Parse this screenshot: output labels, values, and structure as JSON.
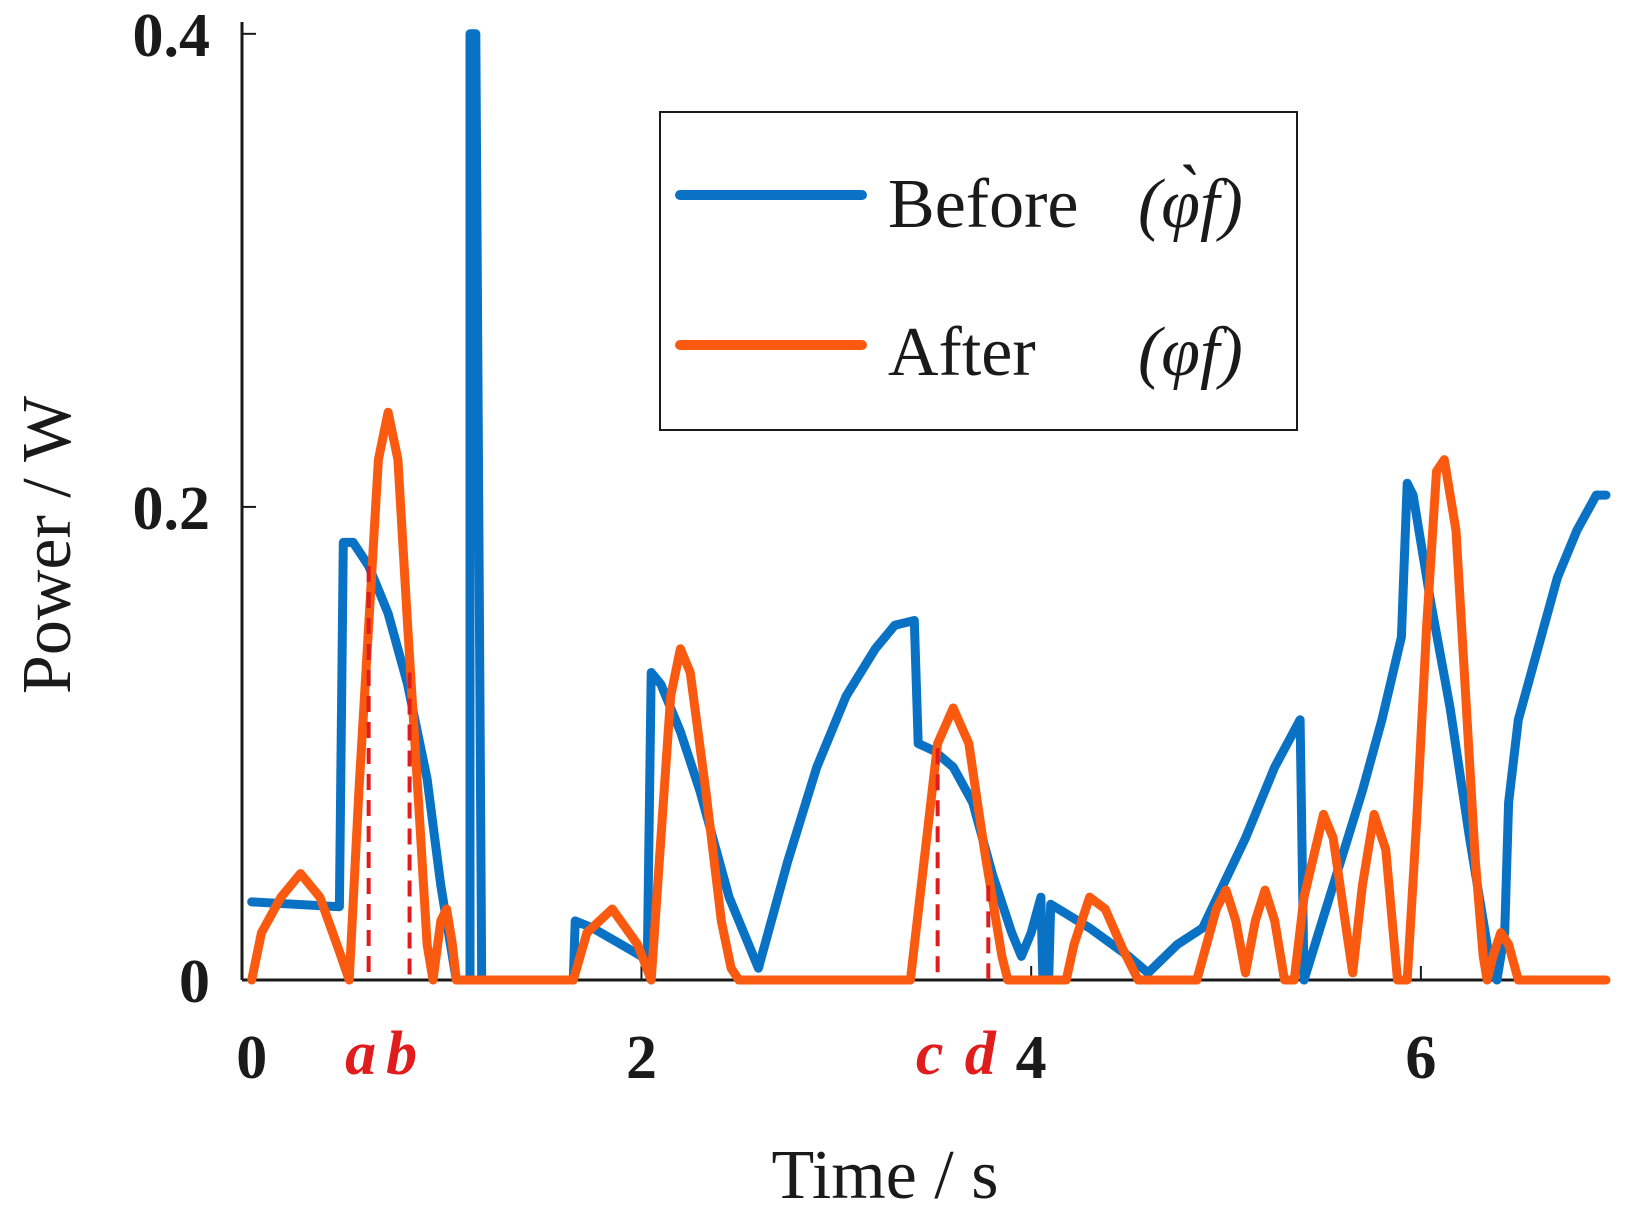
{
  "chart_data": {
    "type": "line",
    "title": "",
    "xlabel": "Time / s",
    "ylabel": "Power / W",
    "xlim": [
      -0.05,
      6.95
    ],
    "ylim": [
      0,
      0.405
    ],
    "x_ticks": [
      {
        "value": 0,
        "label": "0"
      },
      {
        "value": 2,
        "label": "2"
      },
      {
        "value": 4,
        "label": "4"
      },
      {
        "value": 6,
        "label": "6"
      }
    ],
    "y_ticks": [
      {
        "value": 0,
        "label": "0"
      },
      {
        "value": 0.2,
        "label": "0.2"
      },
      {
        "value": 0.4,
        "label": "0.4"
      }
    ],
    "legend": {
      "position": "top-right",
      "entries": [
        {
          "series": "before",
          "label": "Before",
          "symbol": "(φ̀f)"
        },
        {
          "series": "after",
          "label": "After",
          "symbol": "(φf)"
        }
      ]
    },
    "colors": {
      "before": "#0a72c4",
      "after": "#fa5a0f",
      "marker": "#e01c1c",
      "axis": "#1a1a1a"
    },
    "series": [
      {
        "name": "before",
        "points": [
          [
            0.0,
            0.033
          ],
          [
            0.45,
            0.031
          ],
          [
            0.47,
            0.185
          ],
          [
            0.52,
            0.185
          ],
          [
            0.6,
            0.175
          ],
          [
            0.7,
            0.155
          ],
          [
            0.8,
            0.125
          ],
          [
            0.9,
            0.085
          ],
          [
            0.97,
            0.04
          ],
          [
            1.01,
            0.02
          ],
          [
            1.05,
            0.0
          ],
          [
            1.12,
            0.0
          ],
          [
            1.12,
            0.4
          ],
          [
            1.15,
            0.4
          ],
          [
            1.18,
            0.0
          ],
          [
            1.65,
            0.0
          ],
          [
            1.66,
            0.025
          ],
          [
            1.75,
            0.022
          ],
          [
            2.0,
            0.01
          ],
          [
            2.03,
            0.008
          ],
          [
            2.05,
            0.13
          ],
          [
            2.1,
            0.125
          ],
          [
            2.2,
            0.105
          ],
          [
            2.3,
            0.08
          ],
          [
            2.45,
            0.035
          ],
          [
            2.6,
            0.005
          ],
          [
            2.75,
            0.05
          ],
          [
            2.9,
            0.09
          ],
          [
            3.05,
            0.12
          ],
          [
            3.2,
            0.14
          ],
          [
            3.3,
            0.15
          ],
          [
            3.4,
            0.152
          ],
          [
            3.42,
            0.1
          ],
          [
            3.5,
            0.097
          ],
          [
            3.6,
            0.09
          ],
          [
            3.7,
            0.075
          ],
          [
            3.8,
            0.045
          ],
          [
            3.9,
            0.02
          ],
          [
            3.95,
            0.01
          ],
          [
            4.0,
            0.02
          ],
          [
            4.05,
            0.035
          ],
          [
            4.06,
            0.0
          ],
          [
            4.09,
            0.0
          ],
          [
            4.1,
            0.032
          ],
          [
            4.3,
            0.022
          ],
          [
            4.5,
            0.01
          ],
          [
            4.6,
            0.003
          ],
          [
            4.75,
            0.015
          ],
          [
            4.88,
            0.022
          ],
          [
            5.1,
            0.06
          ],
          [
            5.25,
            0.09
          ],
          [
            5.38,
            0.11
          ],
          [
            5.4,
            0.0
          ],
          [
            5.55,
            0.04
          ],
          [
            5.7,
            0.08
          ],
          [
            5.8,
            0.11
          ],
          [
            5.9,
            0.145
          ],
          [
            5.93,
            0.21
          ],
          [
            5.96,
            0.205
          ],
          [
            6.05,
            0.16
          ],
          [
            6.15,
            0.115
          ],
          [
            6.25,
            0.06
          ],
          [
            6.35,
            0.01
          ],
          [
            6.39,
            0.0
          ],
          [
            6.43,
            0.02
          ],
          [
            6.45,
            0.075
          ],
          [
            6.5,
            0.11
          ],
          [
            6.6,
            0.14
          ],
          [
            6.7,
            0.17
          ],
          [
            6.8,
            0.19
          ],
          [
            6.9,
            0.205
          ],
          [
            6.95,
            0.205
          ]
        ]
      },
      {
        "name": "after",
        "points": [
          [
            0.0,
            0.0
          ],
          [
            0.05,
            0.02
          ],
          [
            0.15,
            0.035
          ],
          [
            0.25,
            0.045
          ],
          [
            0.35,
            0.035
          ],
          [
            0.45,
            0.012
          ],
          [
            0.5,
            0.0
          ],
          [
            0.55,
            0.08
          ],
          [
            0.6,
            0.15
          ],
          [
            0.65,
            0.22
          ],
          [
            0.7,
            0.24
          ],
          [
            0.75,
            0.22
          ],
          [
            0.8,
            0.15
          ],
          [
            0.86,
            0.07
          ],
          [
            0.9,
            0.015
          ],
          [
            0.93,
            0.0
          ],
          [
            0.97,
            0.025
          ],
          [
            1.0,
            0.03
          ],
          [
            1.03,
            0.015
          ],
          [
            1.05,
            0.0
          ],
          [
            1.65,
            0.0
          ],
          [
            1.72,
            0.02
          ],
          [
            1.85,
            0.03
          ],
          [
            1.98,
            0.015
          ],
          [
            2.05,
            0.0
          ],
          [
            2.1,
            0.06
          ],
          [
            2.15,
            0.12
          ],
          [
            2.2,
            0.14
          ],
          [
            2.25,
            0.13
          ],
          [
            2.33,
            0.08
          ],
          [
            2.41,
            0.025
          ],
          [
            2.46,
            0.005
          ],
          [
            2.5,
            0.0
          ],
          [
            3.38,
            0.0
          ],
          [
            3.45,
            0.05
          ],
          [
            3.52,
            0.1
          ],
          [
            3.6,
            0.115
          ],
          [
            3.68,
            0.1
          ],
          [
            3.76,
            0.055
          ],
          [
            3.85,
            0.01
          ],
          [
            3.88,
            0.0
          ],
          [
            4.18,
            0.0
          ],
          [
            4.22,
            0.015
          ],
          [
            4.3,
            0.035
          ],
          [
            4.38,
            0.03
          ],
          [
            4.47,
            0.013
          ],
          [
            4.55,
            0.0
          ],
          [
            4.85,
            0.0
          ],
          [
            4.95,
            0.03
          ],
          [
            5.0,
            0.038
          ],
          [
            5.05,
            0.025
          ],
          [
            5.1,
            0.003
          ],
          [
            5.15,
            0.025
          ],
          [
            5.2,
            0.038
          ],
          [
            5.25,
            0.025
          ],
          [
            5.3,
            0.0
          ],
          [
            5.35,
            0.0
          ],
          [
            5.4,
            0.035
          ],
          [
            5.5,
            0.07
          ],
          [
            5.55,
            0.06
          ],
          [
            5.62,
            0.02
          ],
          [
            5.65,
            0.003
          ],
          [
            5.7,
            0.04
          ],
          [
            5.76,
            0.07
          ],
          [
            5.82,
            0.055
          ],
          [
            5.88,
            0.0
          ],
          [
            5.93,
            0.0
          ],
          [
            5.98,
            0.07
          ],
          [
            6.03,
            0.15
          ],
          [
            6.08,
            0.215
          ],
          [
            6.12,
            0.22
          ],
          [
            6.18,
            0.19
          ],
          [
            6.23,
            0.12
          ],
          [
            6.28,
            0.05
          ],
          [
            6.32,
            0.01
          ],
          [
            6.34,
            0.0
          ],
          [
            6.37,
            0.01
          ],
          [
            6.41,
            0.02
          ],
          [
            6.45,
            0.015
          ],
          [
            6.5,
            0.0
          ],
          [
            6.95,
            0.0
          ]
        ]
      }
    ],
    "markers": [
      {
        "label": "a",
        "x": 0.6,
        "y_top": 0.175
      },
      {
        "label": "b",
        "x": 0.81,
        "y_top": 0.13
      },
      {
        "label": "c",
        "x": 3.52,
        "y_top": 0.098
      },
      {
        "label": "d",
        "x": 3.78,
        "y_top": 0.04
      }
    ]
  }
}
